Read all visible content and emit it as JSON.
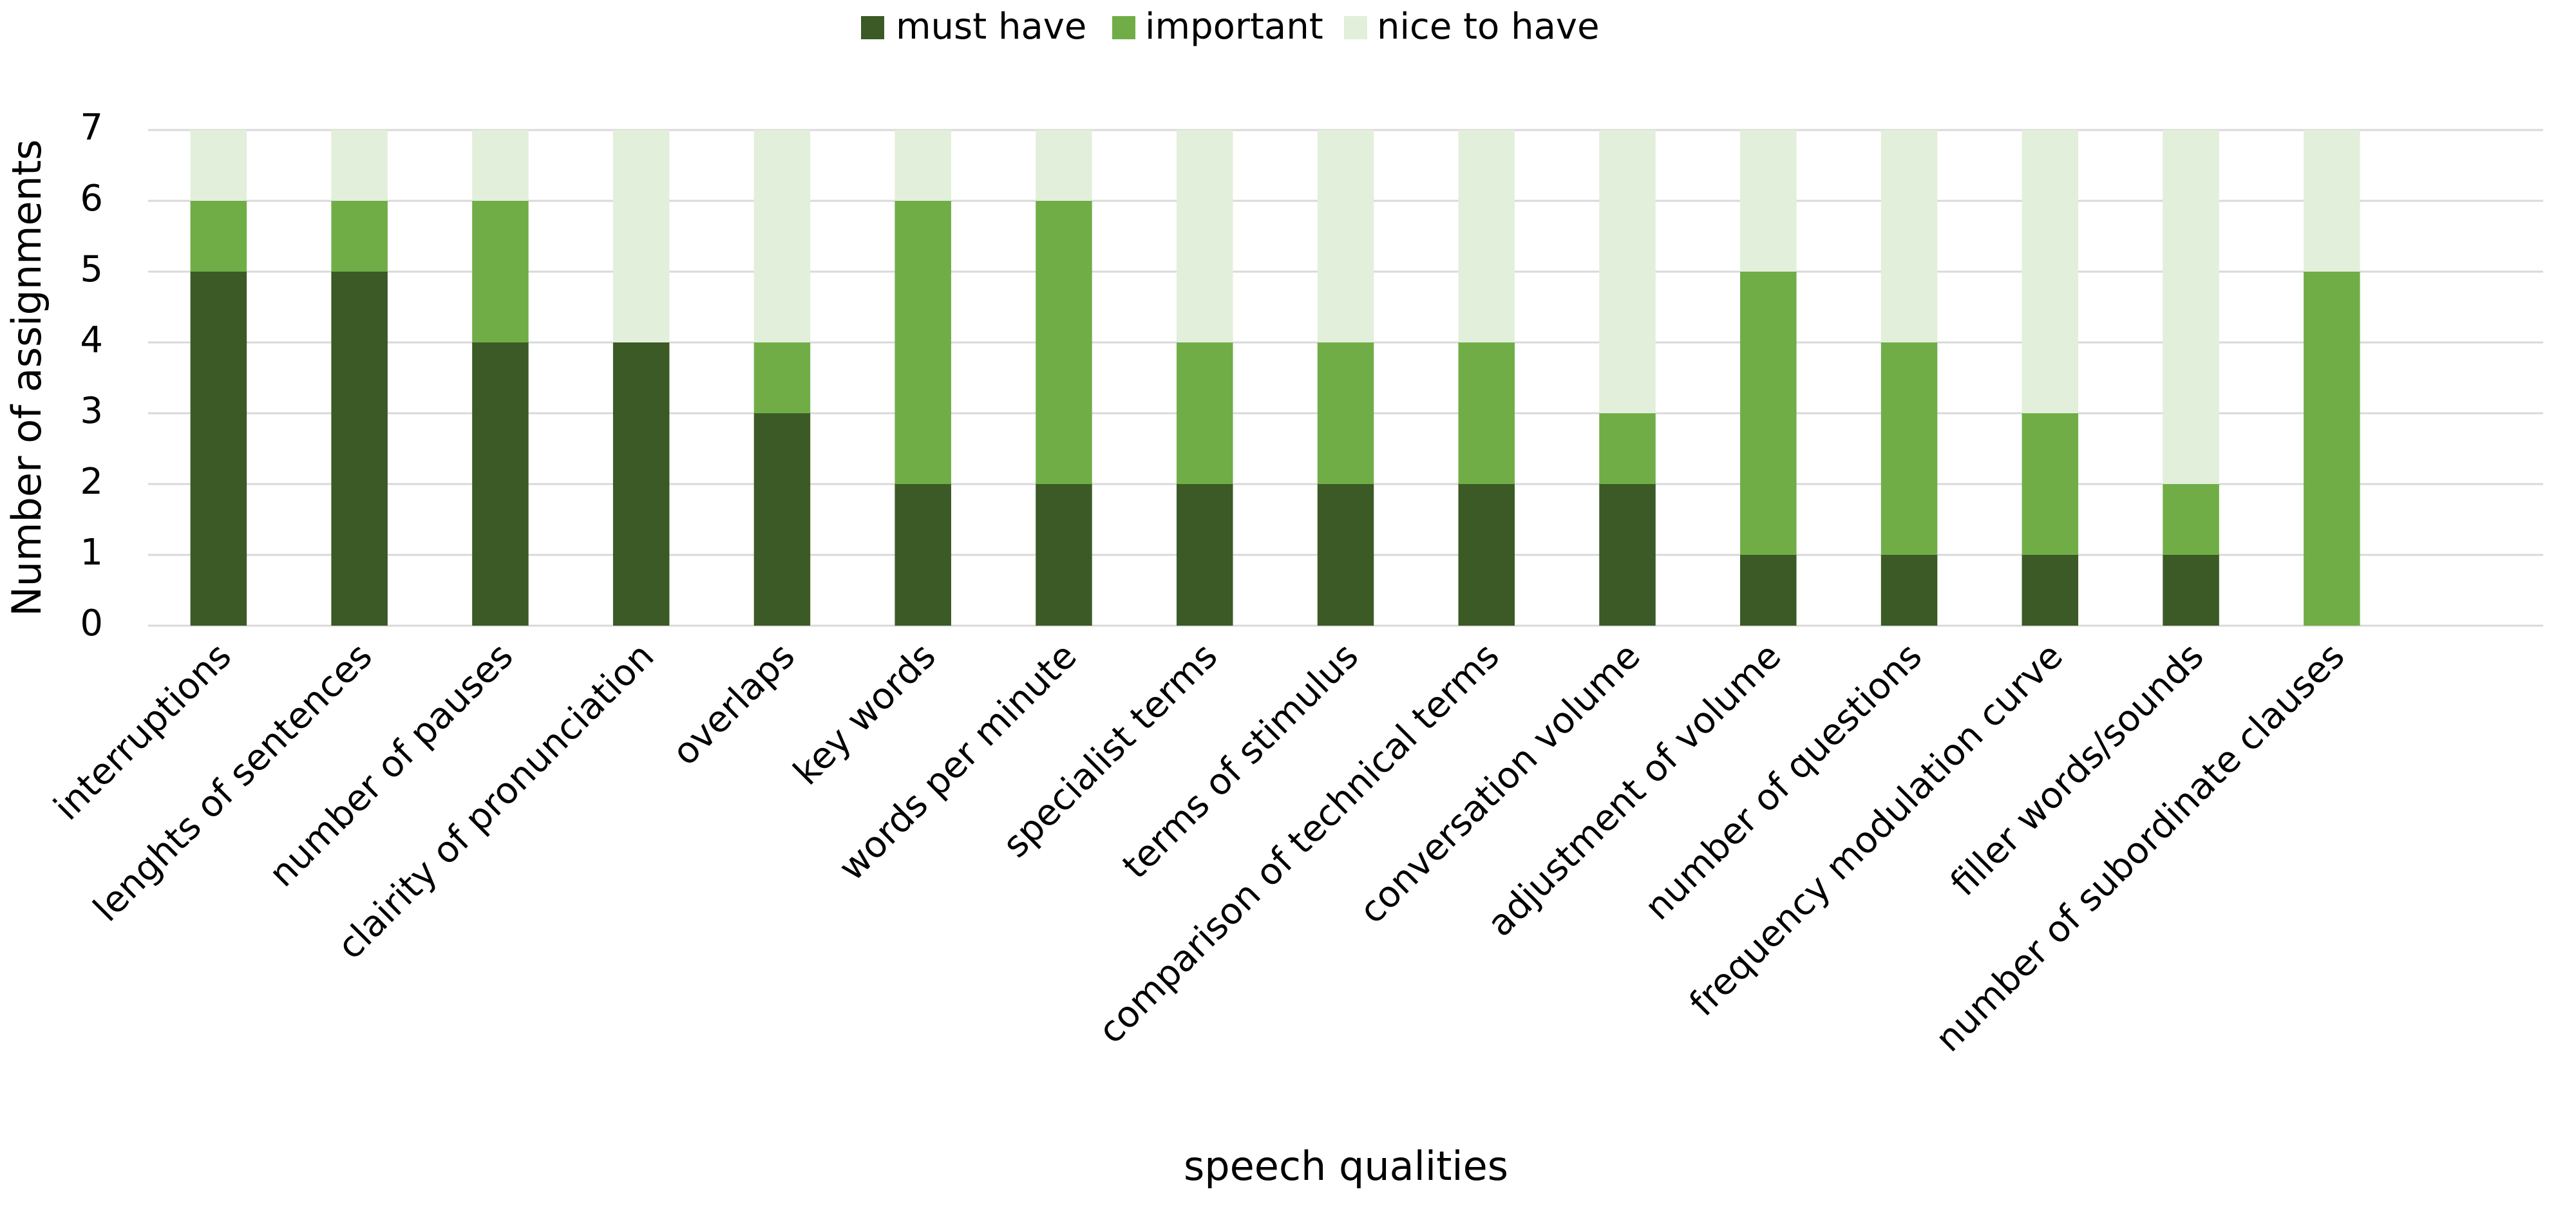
{
  "chart_data": {
    "type": "stacked_bar",
    "x_label": "speech qualities",
    "y_label": "Number of assignments",
    "categories": [
      "interruptions",
      "lenghts of sentences",
      "number of pauses",
      "clairity of pronunciation",
      "overlaps",
      "key words",
      "words per minute",
      "specialist terms",
      "terms of stimulus",
      "comparison of technical terms",
      "conversation volume",
      "adjustment of volume",
      "number of questions",
      "frequency modulation curve",
      "filler words/sounds",
      "number of subordinate clauses",
      null
    ],
    "series": [
      {
        "name": "must have",
        "color": "#3b5a25",
        "values": [
          5,
          5,
          4,
          4,
          3,
          2,
          2,
          2,
          2,
          2,
          2,
          1,
          1,
          1,
          1,
          0,
          null
        ]
      },
      {
        "name": "important",
        "color": "#70ad47",
        "values": [
          1,
          1,
          2,
          0,
          1,
          4,
          4,
          2,
          2,
          2,
          1,
          4,
          3,
          2,
          1,
          5,
          null
        ]
      },
      {
        "name": "nice to have",
        "color": "#e2efda",
        "values": [
          1,
          1,
          1,
          3,
          3,
          1,
          1,
          3,
          3,
          3,
          4,
          2,
          3,
          4,
          5,
          2,
          null
        ]
      }
    ],
    "ylim": [
      0,
      7
    ],
    "yticks": [
      0,
      1,
      2,
      3,
      4,
      5,
      6,
      7
    ],
    "grid": true,
    "legend": "top"
  }
}
